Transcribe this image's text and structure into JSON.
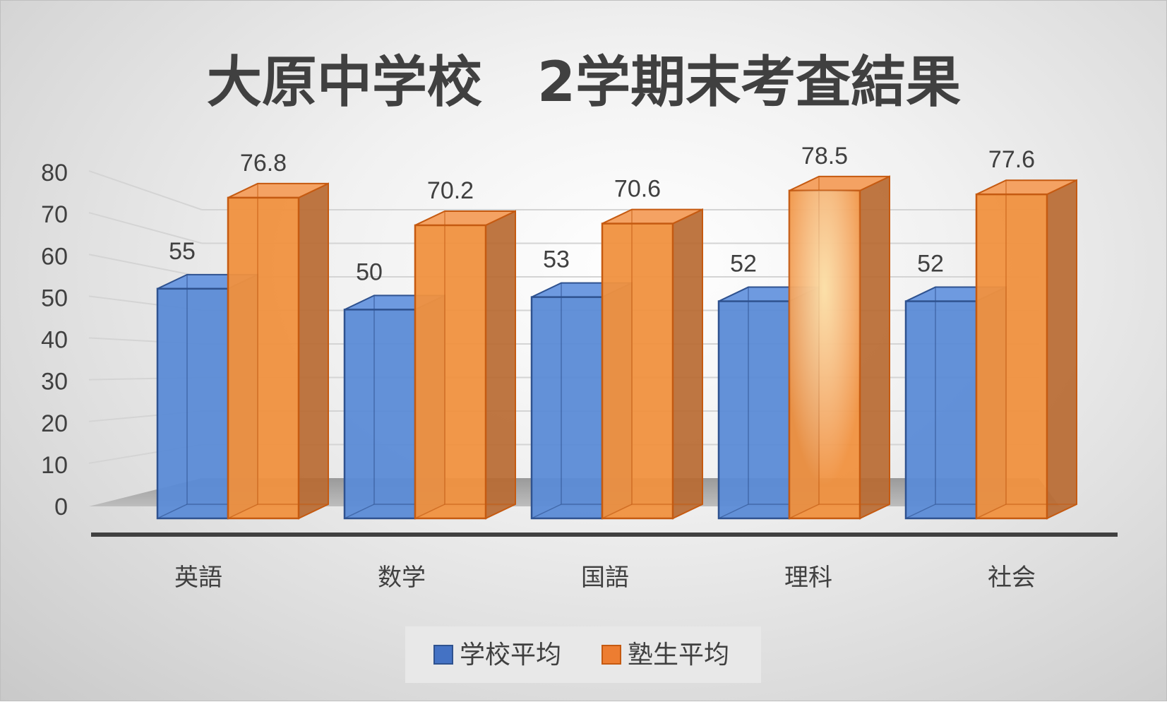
{
  "chart_data": {
    "type": "bar",
    "title": "大原中学校　2学期末考査結果",
    "categories": [
      "英語",
      "数学",
      "国語",
      "理科",
      "社会"
    ],
    "series": [
      {
        "name": "学校平均",
        "values": [
          55,
          50,
          53,
          52,
          52
        ]
      },
      {
        "name": "塾生平均",
        "values": [
          76.8,
          70.2,
          70.6,
          78.5,
          77.6
        ]
      }
    ],
    "ylim": [
      0,
      80
    ],
    "yticks": [
      0,
      10,
      20,
      30,
      40,
      50,
      60,
      70,
      80
    ],
    "grid": true,
    "legend": "bottom",
    "style": "3d-clustered-column",
    "colors": {
      "series1": "#4472c4",
      "series2": "#ed7d31"
    }
  }
}
